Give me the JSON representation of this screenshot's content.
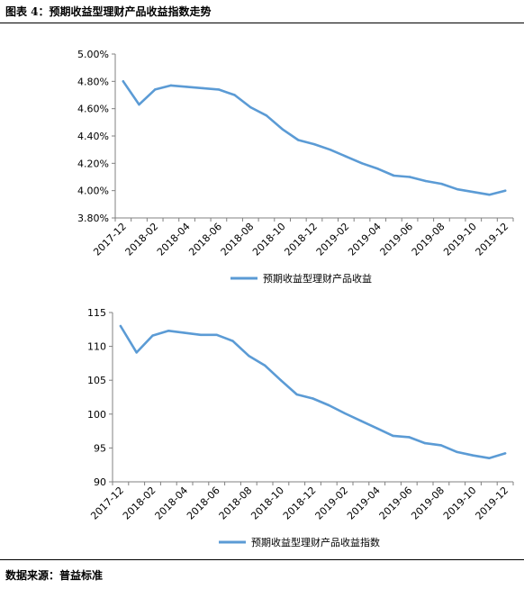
{
  "figure_title": "图表 4：预期收益型理财产品收益指数走势",
  "source_note": "数据来源：普益标准",
  "series_color": "#5b9bd5",
  "chart_data": [
    {
      "type": "line",
      "x": [
        "2017-12",
        "2018-01",
        "2018-02",
        "2018-03",
        "2018-04",
        "2018-05",
        "2018-06",
        "2018-07",
        "2018-08",
        "2018-09",
        "2018-10",
        "2018-11",
        "2018-12",
        "2019-01",
        "2019-02",
        "2019-03",
        "2019-04",
        "2019-05",
        "2019-06",
        "2019-07",
        "2019-08",
        "2019-09",
        "2019-10",
        "2019-11",
        "2019-12"
      ],
      "x_tick_labels": [
        "2017-12",
        "2018-02",
        "2018-04",
        "2018-06",
        "2018-08",
        "2018-10",
        "2018-12",
        "2019-02",
        "2019-04",
        "2019-06",
        "2019-08",
        "2019-10",
        "2019-12"
      ],
      "y_tick_labels": [
        "3.80%",
        "4.00%",
        "4.20%",
        "4.40%",
        "4.60%",
        "4.80%",
        "5.00%"
      ],
      "ylim": [
        3.8,
        5.0
      ],
      "series": [
        {
          "name": "预期收益型理财产品收益",
          "values": [
            4.8,
            4.63,
            4.74,
            4.77,
            4.76,
            4.75,
            4.74,
            4.7,
            4.61,
            4.55,
            4.45,
            4.37,
            4.34,
            4.3,
            4.25,
            4.2,
            4.16,
            4.11,
            4.1,
            4.07,
            4.05,
            4.01,
            3.99,
            3.97,
            4.0
          ]
        }
      ],
      "legend": "bottom",
      "grid": false
    },
    {
      "type": "line",
      "x": [
        "2017-12",
        "2018-01",
        "2018-02",
        "2018-03",
        "2018-04",
        "2018-05",
        "2018-06",
        "2018-07",
        "2018-08",
        "2018-09",
        "2018-10",
        "2018-11",
        "2018-12",
        "2019-01",
        "2019-02",
        "2019-03",
        "2019-04",
        "2019-05",
        "2019-06",
        "2019-07",
        "2019-08",
        "2019-09",
        "2019-10",
        "2019-11",
        "2019-12"
      ],
      "x_tick_labels": [
        "2017-12",
        "2018-02",
        "2018-04",
        "2018-06",
        "2018-08",
        "2018-10",
        "2018-12",
        "2019-02",
        "2019-04",
        "2019-06",
        "2019-08",
        "2019-10",
        "2019-12"
      ],
      "y_tick_labels": [
        "90",
        "95",
        "100",
        "105",
        "110",
        "115"
      ],
      "ylim": [
        90,
        115
      ],
      "series": [
        {
          "name": "预期收益型理财产品收益指数",
          "values": [
            113.0,
            109.1,
            111.6,
            112.3,
            112.0,
            111.7,
            111.7,
            110.8,
            108.6,
            107.2,
            105.0,
            102.9,
            102.3,
            101.3,
            100.1,
            99.0,
            97.9,
            96.8,
            96.6,
            95.7,
            95.4,
            94.4,
            93.9,
            93.5,
            94.2
          ]
        }
      ],
      "legend": "bottom",
      "grid": false
    }
  ]
}
